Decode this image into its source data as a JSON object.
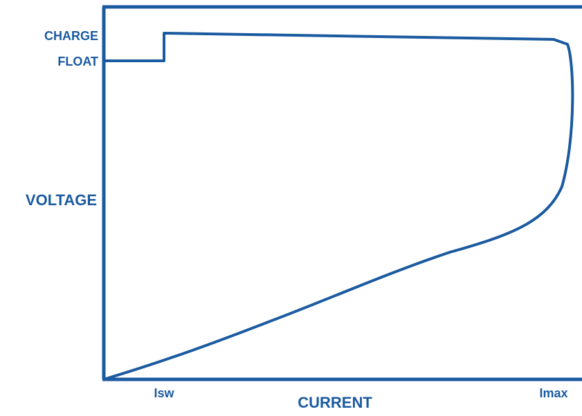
{
  "chart_data": {
    "type": "line",
    "title": "",
    "xlabel": "CURRENT",
    "ylabel": "VOLTAGE",
    "x_ticks": [
      "Isw",
      "Imax"
    ],
    "y_ticks": [
      "CHARGE",
      "FLOAT"
    ],
    "grid": false,
    "color": "#1a5aa0"
  }
}
